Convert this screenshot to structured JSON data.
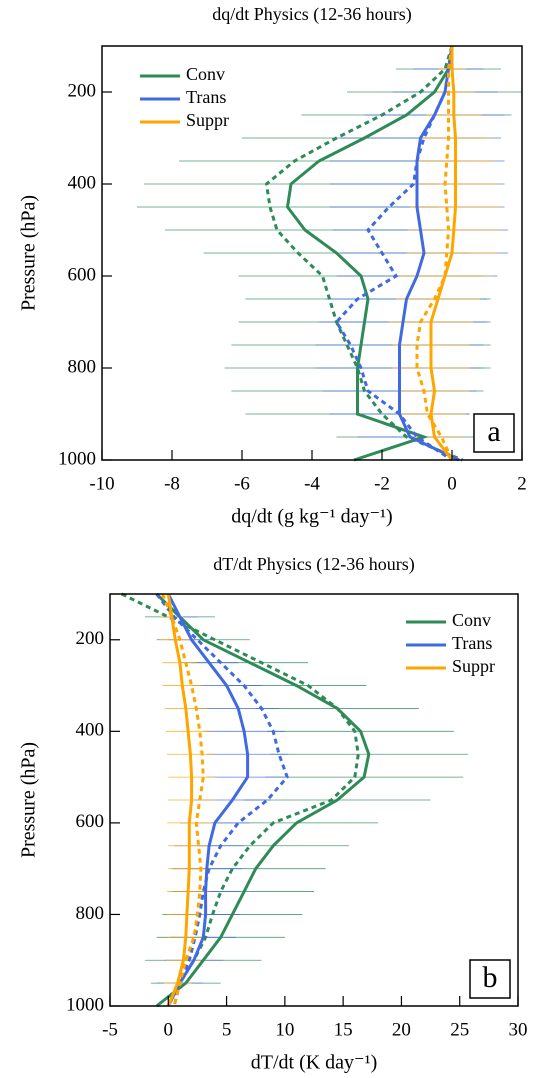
{
  "chart_data": [
    {
      "type": "line",
      "orientation": "horizontal",
      "title": "dq/dt Physics (12-36 hours)",
      "xlabel": "dq/dt (g kg⁻¹ day⁻¹)",
      "ylabel": "Pressure (hPa)",
      "panel_label": "a",
      "xlim": [
        -10,
        2
      ],
      "xticks": [
        -10,
        -8,
        -6,
        -4,
        -2,
        0,
        2
      ],
      "ylim": [
        1000,
        100
      ],
      "yticks": [
        200,
        400,
        600,
        800,
        1000
      ],
      "legend": "top-left",
      "levels": [
        100,
        150,
        200,
        250,
        300,
        350,
        400,
        450,
        500,
        550,
        600,
        650,
        700,
        750,
        800,
        850,
        900,
        950,
        1000
      ],
      "series": [
        {
          "name": "Conv",
          "color": "#2e8b57",
          "values": [
            0,
            -0.1,
            -0.5,
            -1.3,
            -2.5,
            -3.8,
            -4.6,
            -4.7,
            -4.2,
            -3.3,
            -2.6,
            -2.4,
            -2.5,
            -2.6,
            -2.7,
            -2.7,
            -2.7,
            -0.8,
            -2.8
          ],
          "dashed_values": [
            0,
            -0.2,
            -0.9,
            -2,
            -3.3,
            -4.5,
            -5.3,
            -5.2,
            -5,
            -4.4,
            -3.7,
            -3.5,
            -3.3,
            -3,
            -2.7,
            -2.5,
            -2,
            -1.3,
            0.3
          ],
          "errors": [
            0.5,
            1.5,
            2.5,
            3,
            3.5,
            4,
            4.2,
            4.3,
            4,
            3.8,
            3.5,
            3.5,
            3.6,
            3.7,
            3.8,
            3.6,
            3.2,
            2.5,
            2
          ]
        },
        {
          "name": "Trans",
          "color": "#4169e1",
          "values": [
            0,
            -0.1,
            -0.2,
            -0.5,
            -0.9,
            -1,
            -1,
            -1,
            -0.9,
            -0.8,
            -1,
            -1.3,
            -1.4,
            -1.5,
            -1.5,
            -1.5,
            -1.5,
            -1.2,
            0.2
          ],
          "dashed_values": [
            0,
            -0.1,
            -0.2,
            -0.5,
            -0.8,
            -1,
            -1.1,
            -1.8,
            -2.4,
            -2,
            -1.6,
            -2.7,
            -3.3,
            -2.9,
            -2.6,
            -2.4,
            -1.5,
            -1,
            0
          ],
          "errors": [
            0.3,
            1,
            1.5,
            2,
            2.3,
            2.5,
            2.5,
            2.5,
            2.5,
            2.4,
            2.3,
            2.3,
            2.4,
            2.4,
            2.4,
            2.2,
            2,
            1.5,
            1
          ]
        },
        {
          "name": "Suppr",
          "color": "#ffa500",
          "values": [
            0,
            0,
            0.05,
            0.05,
            0.1,
            0.1,
            0.1,
            0.1,
            0.05,
            0,
            -0.2,
            -0.4,
            -0.6,
            -0.6,
            -0.6,
            -0.5,
            -0.6,
            -0.5,
            0
          ],
          "dashed_values": [
            0,
            -0.1,
            -0.1,
            -0.1,
            -0.1,
            -0.15,
            -0.2,
            -0.15,
            -0.1,
            -0.15,
            -0.2,
            -0.5,
            -0.9,
            -1,
            -1,
            -0.8,
            -0.7,
            -0.3,
            0
          ],
          "errors": [
            0.2,
            0.4,
            0.6,
            0.8,
            1,
            1.1,
            1.2,
            1.3,
            1.3,
            1.3,
            1.3,
            1.2,
            1.2,
            1.1,
            1.1,
            1,
            1,
            0.8,
            0.6
          ]
        }
      ]
    },
    {
      "type": "line",
      "orientation": "horizontal",
      "title": "dT/dt Physics (12-36 hours)",
      "xlabel": "dT/dt (K day⁻¹)",
      "ylabel": "Pressure (hPa)",
      "panel_label": "b",
      "xlim": [
        -5,
        30
      ],
      "xticks": [
        -5,
        0,
        5,
        10,
        15,
        20,
        25,
        30
      ],
      "ylim": [
        1000,
        100
      ],
      "yticks": [
        200,
        400,
        600,
        800,
        1000
      ],
      "legend": "top-right",
      "levels": [
        100,
        150,
        200,
        250,
        300,
        350,
        400,
        450,
        500,
        550,
        600,
        650,
        700,
        750,
        800,
        850,
        900,
        950,
        1000
      ],
      "series": [
        {
          "name": "Conv",
          "color": "#2e8b57",
          "values": [
            -1,
            1,
            3,
            7,
            11,
            14.5,
            16.5,
            17.2,
            16.8,
            14.5,
            11,
            9,
            7.5,
            6.5,
            5.5,
            4.5,
            3,
            1.5,
            -1
          ],
          "dashed_values": [
            -4,
            0,
            4,
            8,
            12,
            14.5,
            16,
            16.3,
            16,
            14,
            9,
            7,
            5.5,
            4.5,
            3.8,
            3.2,
            2.2,
            1,
            0
          ],
          "errors": [
            2,
            3,
            4,
            5,
            6,
            7,
            8,
            8.5,
            8.5,
            8,
            7,
            6.5,
            6,
            6,
            6,
            5.5,
            5,
            3,
            2
          ]
        },
        {
          "name": "Trans",
          "color": "#4169e1",
          "values": [
            0,
            1,
            2,
            3.5,
            5,
            6,
            6.5,
            6.8,
            6.8,
            5.5,
            4,
            3.5,
            3.3,
            3.2,
            3.2,
            3,
            2.2,
            1,
            0
          ],
          "dashed_values": [
            -1,
            0.5,
            2.5,
            4.5,
            6.5,
            8,
            9,
            9.5,
            10.2,
            8.5,
            6,
            4.5,
            3.5,
            3,
            2.7,
            2.3,
            1.8,
            1,
            0.5
          ],
          "errors": [
            1,
            1.5,
            2,
            2.5,
            3,
            3.5,
            3.5,
            3.5,
            3.5,
            3.3,
            3,
            3,
            3,
            3,
            3,
            2.8,
            2.5,
            2,
            1
          ]
        },
        {
          "name": "Suppr",
          "color": "#ffa500",
          "values": [
            0,
            0.3,
            0.6,
            1,
            1.2,
            1.5,
            1.7,
            1.9,
            2,
            2,
            1.8,
            1.8,
            1.8,
            1.7,
            1.6,
            1.5,
            1.3,
            0.8,
            0
          ],
          "dashed_values": [
            -0.5,
            0.3,
            1,
            1.5,
            2,
            2.4,
            2.7,
            2.9,
            3,
            2.7,
            2.4,
            2.6,
            2.8,
            2.7,
            2.5,
            2.2,
            1.5,
            1,
            0.5
          ],
          "errors": [
            0.8,
            1,
            1.3,
            1.5,
            1.7,
            1.8,
            1.9,
            2,
            2,
            2,
            1.9,
            1.8,
            1.8,
            1.8,
            1.7,
            1.6,
            1.5,
            1.2,
            0.8
          ]
        }
      ]
    }
  ]
}
